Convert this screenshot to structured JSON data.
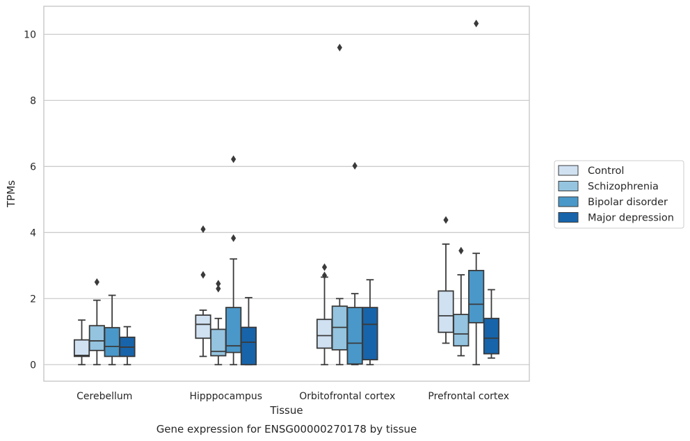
{
  "chart_data": {
    "type": "box",
    "title": "",
    "caption": "Gene expression for ENSG00000270178 by tissue",
    "xlabel": "Tissue",
    "ylabel": "TPMs",
    "ylim": [
      -0.5,
      10.85
    ],
    "yticks": [
      0,
      2,
      4,
      6,
      8,
      10
    ],
    "grid": "horizontal",
    "legend_position": "right",
    "categories": [
      "Cerebellum",
      "Hipppocampus",
      "Orbitofrontal cortex",
      "Prefrontal cortex"
    ],
    "series": [
      {
        "name": "Control",
        "color": "#d0e1f2",
        "boxes": [
          {
            "whisker_low": 0.0,
            "q1": 0.25,
            "median": 0.28,
            "q3": 0.75,
            "whisker_high": 1.35,
            "outliers": []
          },
          {
            "whisker_low": 0.25,
            "q1": 0.8,
            "median": 1.22,
            "q3": 1.5,
            "whisker_high": 1.65,
            "outliers": [
              4.1,
              2.72
            ]
          },
          {
            "whisker_low": 0.0,
            "q1": 0.5,
            "median": 0.88,
            "q3": 1.37,
            "whisker_high": 2.65,
            "outliers": [
              2.95,
              2.7
            ]
          },
          {
            "whisker_low": 0.65,
            "q1": 0.98,
            "median": 1.48,
            "q3": 2.23,
            "whisker_high": 3.65,
            "outliers": [
              4.38
            ]
          }
        ]
      },
      {
        "name": "Schizophrenia",
        "color": "#94c4df",
        "boxes": [
          {
            "whisker_low": 0.0,
            "q1": 0.43,
            "median": 0.72,
            "q3": 1.18,
            "whisker_high": 1.95,
            "outliers": [
              2.5
            ]
          },
          {
            "whisker_low": 0.0,
            "q1": 0.27,
            "median": 0.4,
            "q3": 1.07,
            "whisker_high": 1.4,
            "outliers": [
              2.45,
              2.3
            ]
          },
          {
            "whisker_low": 0.0,
            "q1": 0.45,
            "median": 1.13,
            "q3": 1.77,
            "whisker_high": 2.0,
            "outliers": [
              9.6
            ]
          },
          {
            "whisker_low": 0.27,
            "q1": 0.57,
            "median": 0.93,
            "q3": 1.52,
            "whisker_high": 2.72,
            "outliers": [
              3.45
            ]
          }
        ]
      },
      {
        "name": "Bipolar disorder",
        "color": "#4a98c9",
        "boxes": [
          {
            "whisker_low": 0.0,
            "q1": 0.25,
            "median": 0.55,
            "q3": 1.12,
            "whisker_high": 2.1,
            "outliers": []
          },
          {
            "whisker_low": 0.0,
            "q1": 0.37,
            "median": 0.57,
            "q3": 1.73,
            "whisker_high": 3.2,
            "outliers": [
              6.22,
              3.83
            ]
          },
          {
            "whisker_low": 0.0,
            "q1": 0.02,
            "median": 0.65,
            "q3": 1.73,
            "whisker_high": 2.15,
            "outliers": [
              6.02
            ]
          },
          {
            "whisker_low": 0.0,
            "q1": 1.27,
            "median": 1.83,
            "q3": 2.85,
            "whisker_high": 3.37,
            "outliers": [
              10.33
            ]
          }
        ]
      },
      {
        "name": "Major depression",
        "color": "#1764ab",
        "boxes": [
          {
            "whisker_low": 0.0,
            "q1": 0.25,
            "median": 0.53,
            "q3": 0.83,
            "whisker_high": 1.15,
            "outliers": []
          },
          {
            "whisker_low": 0.0,
            "q1": 0.0,
            "median": 0.68,
            "q3": 1.13,
            "whisker_high": 2.03,
            "outliers": []
          },
          {
            "whisker_low": 0.0,
            "q1": 0.15,
            "median": 1.22,
            "q3": 1.73,
            "whisker_high": 2.57,
            "outliers": []
          },
          {
            "whisker_low": 0.2,
            "q1": 0.33,
            "median": 0.8,
            "q3": 1.4,
            "whisker_high": 2.27,
            "outliers": []
          }
        ]
      }
    ]
  }
}
